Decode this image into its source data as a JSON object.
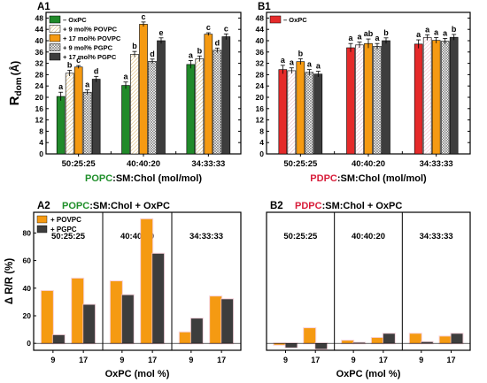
{
  "colors": {
    "green": "#218a2a",
    "dark_gray": "#3d3d3d",
    "orange": "#f59a12",
    "red": "#e52a2a",
    "tan_hatch": "#d9b46a",
    "gray_hatch": "#7a7a7a",
    "pink_highlight": "#f4c2cf",
    "green_text": "#1f8f2a",
    "red_text": "#d81d3a"
  },
  "chart_data": [
    {
      "panel": "A1",
      "type": "bar",
      "ylabel_main": "R",
      "ylabel_sub": "dom",
      "ylabel_unit": "(Å)",
      "ylim": [
        0,
        50
      ],
      "yticks": [
        "0",
        "4",
        "8",
        "12",
        "16",
        "20",
        "24",
        "28",
        "32",
        "36",
        "40",
        "44",
        "48"
      ],
      "categories": [
        "50:25:25",
        "40:40:20",
        "34:33:33"
      ],
      "xlabel_parts": [
        "POPC",
        ":SM:Chol (mol/mol)"
      ],
      "legend": [
        "– OxPC",
        "+ 9 mol% POVPC",
        "+ 17 mol% POVPC",
        "+ 9 mol% PGPC",
        "+ 17 mol% PGPC"
      ],
      "series": [
        {
          "name": "– OxPC",
          "values": [
            20.3,
            24.2,
            31.6
          ],
          "errors": [
            1.5,
            1.2,
            1.4
          ],
          "letters": [
            "a",
            "a",
            "a"
          ]
        },
        {
          "name": "+ 9 mol% POVPC",
          "values": [
            28.5,
            35.2,
            33.6
          ],
          "errors": [
            1.0,
            1.0,
            1.0
          ],
          "letters": [
            "b",
            "b",
            "b"
          ]
        },
        {
          "name": "+ 17 mol% POVPC",
          "values": [
            30.7,
            45.8,
            42.3
          ],
          "errors": [
            0.5,
            0.8,
            0.5
          ],
          "letters": [
            "c",
            "c",
            "c"
          ]
        },
        {
          "name": "+ 9 mol% PGPC",
          "values": [
            21.8,
            32.7,
            36.6
          ],
          "errors": [
            0.8,
            0.8,
            0.8
          ],
          "letters": [
            "a",
            "d",
            "d"
          ]
        },
        {
          "name": "+ 17 mol% PGPC",
          "values": [
            26.4,
            40.0,
            41.4
          ],
          "errors": [
            1.0,
            1.0,
            1.0
          ],
          "letters": [
            "d",
            "e",
            "c"
          ]
        }
      ]
    },
    {
      "panel": "B1",
      "type": "bar",
      "ylim": [
        0,
        50
      ],
      "yticks": [
        "0",
        "4",
        "8",
        "12",
        "16",
        "20",
        "24",
        "28",
        "32",
        "36",
        "40",
        "44",
        "48"
      ],
      "categories": [
        "50:25:25",
        "40:40:20",
        "34:33:33"
      ],
      "xlabel_parts": [
        "PDPC",
        ":SM:Chol (mol/mol)"
      ],
      "legend": [
        "– OxPC"
      ],
      "series": [
        {
          "name": "– OxPC",
          "values": [
            29.8,
            37.5,
            38.8
          ],
          "errors": [
            1.5,
            1.5,
            1.5
          ],
          "letters": [
            "a",
            "a",
            "a"
          ]
        },
        {
          "values": [
            29.4,
            38.5,
            41.1
          ],
          "errors": [
            1.0,
            1.0,
            1.0
          ],
          "letters": [
            "a",
            "a",
            "a"
          ]
        },
        {
          "values": [
            32.6,
            39.0,
            40.1
          ],
          "errors": [
            1.0,
            1.6,
            1.0
          ],
          "letters": [
            "b",
            "ab",
            "a"
          ]
        },
        {
          "values": [
            28.8,
            38.0,
            39.8
          ],
          "errors": [
            1.0,
            1.0,
            1.0
          ],
          "letters": [
            "a",
            "a",
            "a"
          ]
        },
        {
          "values": [
            28.2,
            40.0,
            41.2
          ],
          "errors": [
            1.0,
            1.0,
            1.0
          ],
          "letters": [
            "a",
            "b",
            "b"
          ]
        }
      ]
    },
    {
      "panel": "A2",
      "type": "bar",
      "title_parts": [
        "POPC",
        ":SM:Chol + OxPC"
      ],
      "ylabel": "Δ R/R (%)",
      "xlabel": "OxPC (mol %)",
      "ylim": [
        -5,
        95
      ],
      "yticks": [
        "0",
        "20",
        "40",
        "60",
        "80"
      ],
      "groups": [
        "50:25:25",
        "40:40:20",
        "34:33:33"
      ],
      "x_ticks": [
        "9",
        "17"
      ],
      "legend": [
        "+ POVPC",
        "+ PGPC"
      ],
      "series": [
        {
          "name": "+ POVPC",
          "values": [
            38,
            47,
            45,
            90,
            8,
            34
          ]
        },
        {
          "name": "+ PGPC",
          "values": [
            6,
            28,
            35,
            65,
            18,
            32
          ]
        }
      ]
    },
    {
      "panel": "B2",
      "type": "bar",
      "title_parts": [
        "PDPC",
        ":SM:Chol + OxPC"
      ],
      "xlabel": "OxPC (mol %)",
      "ylim": [
        -5,
        95
      ],
      "groups": [
        "50:25:25",
        "40:40:20",
        "34:33:33"
      ],
      "x_ticks": [
        "9",
        "17"
      ],
      "series": [
        {
          "values": [
            -1,
            11,
            2,
            4,
            7,
            5
          ]
        },
        {
          "values": [
            -3,
            -4,
            0.5,
            7,
            1,
            7
          ]
        }
      ]
    }
  ]
}
